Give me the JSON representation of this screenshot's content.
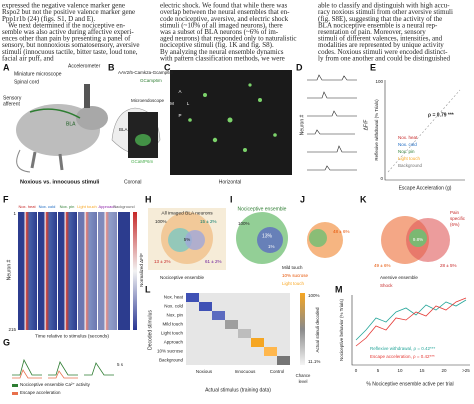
{
  "text_columns": [
    [
      "expressed the negative valence marker gene",
      "Rspo2 but not the positive valence marker gene",
      "Ppp1r1b (24) (figs. S1, D and E).",
      "We next determined if the nociceptive en-",
      "semble was also active during affective experi-",
      "ences other than pain by presenting a panel of",
      "sensory, but nonnoxious somatosensory, aversive",
      "stimuli (innocuous tactile, bitter taste, loud tone,",
      "facial air puff, and"
    ],
    [
      "electric shock. We found that while there was",
      "overlap between the neural ensembles that en-",
      "code nociceptive, aversive, and electric shock",
      "stimuli (~10% of all imaged neurons), there",
      "was a subset of BLA neurons (~6% of im-",
      "aged neurons) that responded only to naturalistic",
      "nociceptive stimuli (fig. 1K and fig. S8).",
      "By analyzing the neural ensemble dynamics",
      "with pattern classification methods, we were"
    ],
    [
      "able to classify and distinguish with high accu-",
      "racy noxious stimuli from other aversive stimuli",
      "(fig. S8E), suggesting that the activity of the",
      "BLA nociceptive ensemble is a neural rep-",
      "resentation of pain. Moreover, sensory",
      "stimuli of different valences, intensities, and",
      "modalities are represented by unique activity",
      "codes. Noxious stimuli were encoded distinct-",
      "ly from one another and could be distinguished"
    ]
  ],
  "figure": {
    "labels": [
      "A",
      "B",
      "C",
      "D",
      "E",
      "F",
      "G",
      "H",
      "I",
      "J",
      "K",
      "L",
      "M"
    ],
    "A": [
      "Miniature microscope",
      "Accelerometer",
      "Spinal cord",
      "Sensory",
      "afferent",
      "BLA",
      "Noxious vs. innocuous stimuli"
    ],
    "B": [
      "AAV2/5-Camk2a-Gcamp6m",
      "Camk2a",
      "GCamp6m",
      "Microendoscope",
      "BLA",
      "GCaMP6m",
      "Coronal"
    ],
    "C": [
      "Horizontal",
      "A",
      "P",
      "M",
      "L"
    ],
    "D": [
      "Neuron #",
      "ΔF/F"
    ],
    "E": [
      "Reflexive withdrawal (% Trials)",
      "ρ = 0.79 ***",
      "Escape Acceleration (g)",
      "Nox. heat",
      "Nox. cold",
      "Nox. pin",
      "Light touch",
      "Background",
      "100",
      "0"
    ],
    "F": [
      "Nox. heat",
      "Nox. cold",
      "Nox. pin",
      "Light touch",
      "Approach",
      "Background",
      "Neuron #",
      "1",
      "215",
      "Time relative to stimulus (seconds)",
      "Normalized ΔF/F"
    ],
    "G": [
      "Nociceptive ensemble Ca²⁺ activity",
      "Escape acceleration",
      "5 s"
    ],
    "H": [
      "All imaged BLA neurons",
      "100%",
      "15 ± 2%",
      "5%",
      "13 ± 2%",
      "61 ± 2%",
      "Nociceptive ensemble"
    ],
    "I": [
      "Nociceptive ensemble",
      "100%",
      "13%",
      "1%",
      "Mild touch",
      "10% sucrose",
      "Light touch"
    ],
    "J": [
      "48 ± 6%"
    ],
    "K": [
      "Pain",
      "specific",
      "(6%)",
      "9.8%",
      "49 ± 6%",
      "28 ± 5%",
      "Aversive ensemble",
      "Shock"
    ],
    "L": [
      "Nox. heat",
      "Nox. cold",
      "Nox. pin",
      "Mild touch",
      "Light touch",
      "Approach",
      "10% sucrose",
      "Background",
      "Decoded stimulus",
      "Noxious",
      "Innocuous",
      "Control",
      "Actual stimulus (training data)",
      "100%",
      "11.1%",
      "Actual stimuli decoded",
      "Chance",
      "level"
    ],
    "M": [
      "Nociceptive behavior (% Trials)",
      "Reflexive withdrawal, ρ = 0.42***",
      "Escape acceleration, ρ = 0.42***",
      "0",
      "5",
      "10",
      "15",
      "20",
      ">25",
      "% Nociceptive ensemble active per trial"
    ]
  }
}
